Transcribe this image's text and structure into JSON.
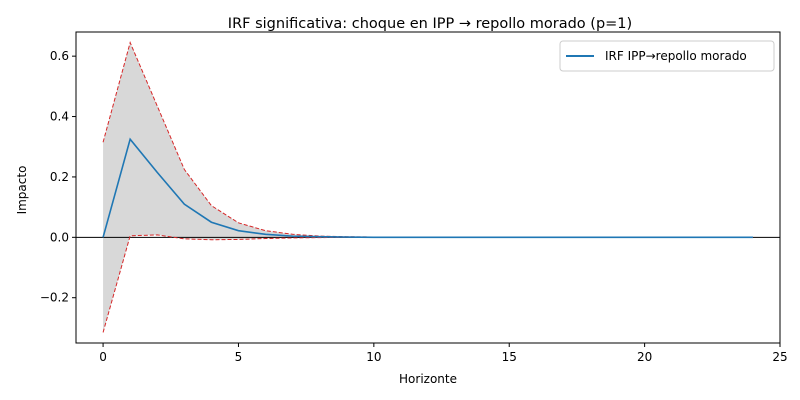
{
  "chart_data": {
    "type": "line",
    "title": "IRF significativa: choque en IPP → repollo morado (p=1)",
    "xlabel": "Horizonte",
    "ylabel": "Impacto",
    "xlim": [
      -1,
      25
    ],
    "ylim": [
      -0.35,
      0.68
    ],
    "xticks": [
      0,
      5,
      10,
      15,
      20,
      25
    ],
    "yticks": [
      -0.2,
      0.0,
      0.2,
      0.4,
      0.6
    ],
    "ytick_labels": [
      "−0.2",
      "0.0",
      "0.2",
      "0.4",
      "0.6"
    ],
    "grid": false,
    "legend_position": "top-right",
    "x": [
      0,
      1,
      2,
      3,
      4,
      5,
      6,
      7,
      8,
      9,
      10,
      11,
      12,
      13,
      14,
      15,
      16,
      17,
      18,
      19,
      20,
      21,
      22,
      23,
      24
    ],
    "series": [
      {
        "name": "IRF IPP→repollo morado",
        "color": "#1f77b4",
        "values": [
          0.0,
          0.325,
          0.215,
          0.11,
          0.05,
          0.022,
          0.01,
          0.004,
          0.002,
          0.001,
          0,
          0,
          0,
          0,
          0,
          0,
          0,
          0,
          0,
          0,
          0,
          0,
          0,
          0,
          0
        ]
      }
    ],
    "band": {
      "color": "#d62728",
      "fill": "#d8d8d8",
      "upper": [
        0.315,
        0.645,
        0.435,
        0.225,
        0.105,
        0.048,
        0.022,
        0.01,
        0.004,
        0.002,
        0.001,
        0,
        0,
        0,
        0,
        0,
        0,
        0,
        0,
        0,
        0,
        0,
        0,
        0,
        0
      ],
      "lower": [
        -0.315,
        0.005,
        0.008,
        -0.005,
        -0.008,
        -0.007,
        -0.004,
        -0.002,
        -0.001,
        0,
        0,
        0,
        0,
        0,
        0,
        0,
        0,
        0,
        0,
        0,
        0,
        0,
        0,
        0,
        0
      ]
    },
    "reference_line_y": 0
  }
}
